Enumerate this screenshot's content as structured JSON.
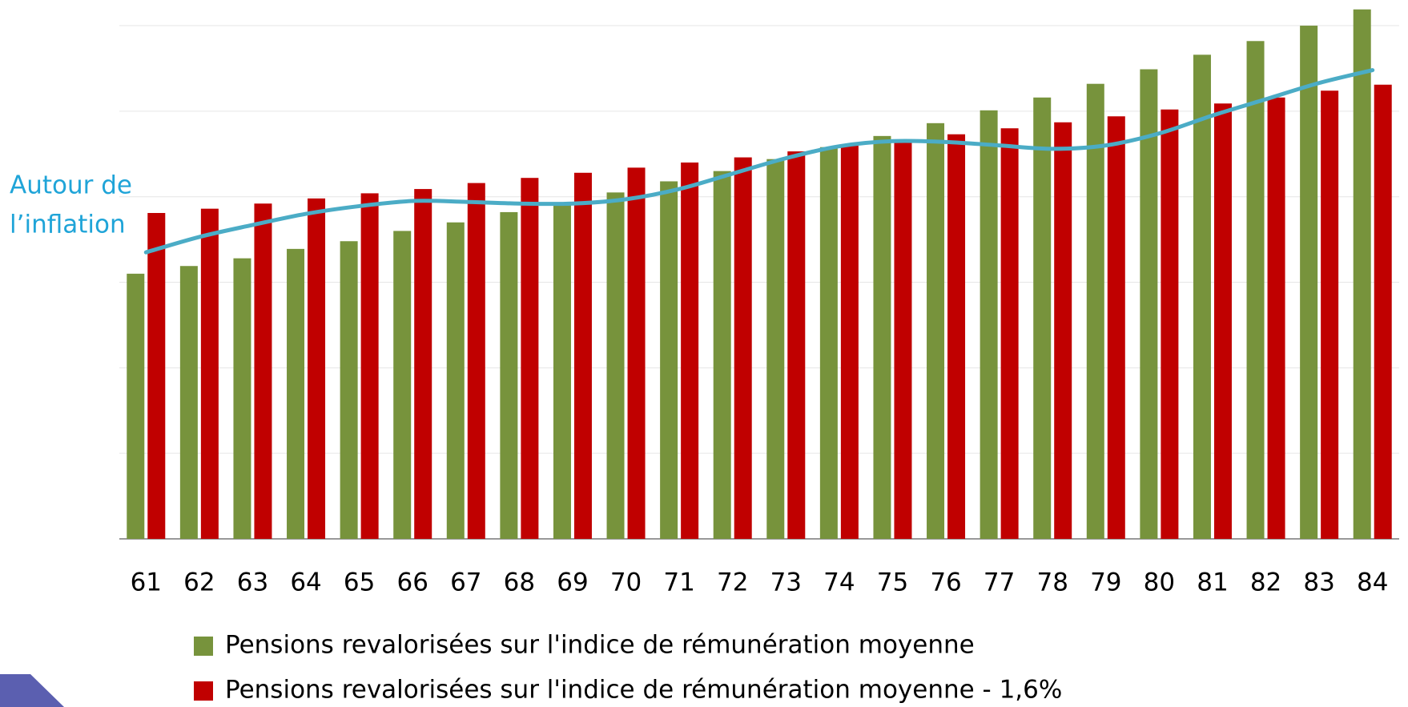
{
  "chart_data": {
    "type": "bar",
    "categories": [
      "61",
      "62",
      "63",
      "64",
      "65",
      "66",
      "67",
      "68",
      "69",
      "70",
      "71",
      "72",
      "73",
      "74",
      "75",
      "76",
      "77",
      "78",
      "79",
      "80",
      "81",
      "82",
      "83",
      "84"
    ],
    "series": [
      {
        "name": "Pensions revalorisées sur l'indice de rémunération moyenne",
        "color": "#77933c",
        "values": [
          3.1,
          3.19,
          3.28,
          3.39,
          3.48,
          3.6,
          3.7,
          3.82,
          3.92,
          4.05,
          4.18,
          4.3,
          4.44,
          4.58,
          4.71,
          4.86,
          5.01,
          5.16,
          5.32,
          5.49,
          5.66,
          5.82,
          6.0,
          6.19
        ]
      },
      {
        "name": "Pensions revalorisées sur l'indice de rémunération moyenne - 1,6%",
        "color": "#c00000",
        "values": [
          3.81,
          3.86,
          3.92,
          3.98,
          4.04,
          4.09,
          4.16,
          4.22,
          4.28,
          4.34,
          4.4,
          4.46,
          4.53,
          4.6,
          4.66,
          4.73,
          4.8,
          4.87,
          4.94,
          5.02,
          5.09,
          5.16,
          5.24,
          5.31
        ]
      }
    ],
    "trend": {
      "color": "#4bacc6",
      "values": [
        3.35,
        3.53,
        3.67,
        3.8,
        3.89,
        3.95,
        3.94,
        3.92,
        3.92,
        3.97,
        4.09,
        4.27,
        4.45,
        4.59,
        4.65,
        4.64,
        4.6,
        4.56,
        4.6,
        4.74,
        4.95,
        5.14,
        5.33,
        5.48
      ]
    },
    "annotation": [
      "Autour de",
      "l’inflation"
    ],
    "annotation_color": "#1fa4d8",
    "ylim": [
      0,
      6.3
    ],
    "yticks": [
      0,
      1,
      2,
      3,
      4,
      5,
      6
    ],
    "grid": true
  }
}
